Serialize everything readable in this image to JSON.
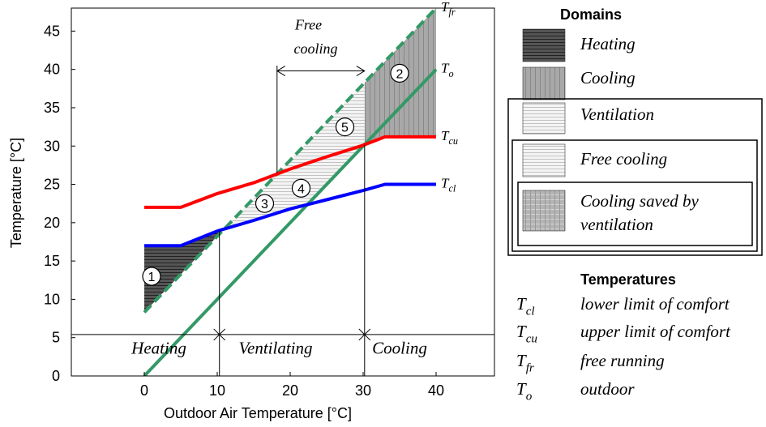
{
  "chart_data": {
    "type": "line",
    "xlabel": "Outdoor Air Temperature [°C]",
    "ylabel": "Temperature [°C]",
    "xlim": [
      -10,
      48
    ],
    "ylim": [
      0,
      48
    ],
    "xticks": [
      0,
      10,
      20,
      30,
      40
    ],
    "yticks": [
      0,
      5,
      10,
      15,
      20,
      25,
      30,
      35,
      40,
      45
    ],
    "grid": false,
    "colors": {
      "Tcu": "#ff0000",
      "Tcl": "#0000ff",
      "To": "#339966",
      "Tfr": "#339966",
      "heating": "#555555",
      "cooling": "#aaaaaa",
      "ventilation": "#cccccc"
    },
    "series": [
      {
        "key": "Tcu",
        "label_main": "T",
        "label_sub": "cu",
        "x": [
          0,
          5,
          10,
          15,
          20,
          25,
          30,
          33,
          40
        ],
        "y": [
          22,
          22,
          23.8,
          25.2,
          27,
          28.6,
          30.1,
          31.2,
          31.2
        ]
      },
      {
        "key": "Tcl",
        "label_main": "T",
        "label_sub": "cl",
        "x": [
          0,
          5,
          10,
          15,
          20,
          25,
          30,
          33,
          40
        ],
        "y": [
          17,
          17,
          18.9,
          20.3,
          21.8,
          23,
          24.2,
          25,
          25
        ]
      },
      {
        "key": "Tfr",
        "label_main": "T",
        "label_sub": "fr",
        "dashed": true,
        "x": [
          0,
          40
        ],
        "y": [
          8.3,
          48
        ]
      },
      {
        "key": "To",
        "label_main": "T",
        "label_sub": "o",
        "x": [
          0,
          40
        ],
        "y": [
          0,
          40
        ]
      }
    ],
    "regions": [
      {
        "id": "1",
        "label": "1",
        "at": [
          1,
          13
        ]
      },
      {
        "id": "2",
        "label": "2",
        "at": [
          35,
          39.5
        ]
      },
      {
        "id": "3",
        "label": "3",
        "at": [
          16.5,
          22.5
        ]
      },
      {
        "id": "4",
        "label": "4",
        "at": [
          21.5,
          24.5
        ]
      },
      {
        "id": "5",
        "label": "5",
        "at": [
          27.5,
          32.5
        ]
      }
    ],
    "modes": [
      {
        "label": "Heating",
        "x": 2
      },
      {
        "label": "Ventilating",
        "x": 18
      },
      {
        "label": "Cooling",
        "x": 35
      }
    ],
    "free_cooling_label": [
      "Free",
      "cooling"
    ],
    "mode_line_y": 5.4,
    "mode_boundaries": [
      10.3,
      30.2
    ],
    "free_cooling_range": [
      18.2,
      30.2
    ]
  },
  "legend": {
    "domains_title": "Domains",
    "domains": [
      {
        "label": "Heating",
        "pattern": "heating"
      },
      {
        "label": "Cooling",
        "pattern": "cooling"
      },
      {
        "label": "Ventilation",
        "pattern": "ventilation"
      },
      {
        "label": "Free cooling",
        "pattern": "ventilation"
      },
      {
        "label": "Cooling saved by",
        "label2": "ventilation",
        "pattern": "saved"
      }
    ],
    "temps_title": "Temperatures",
    "temps": [
      {
        "sym": "T",
        "sub": "cl",
        "desc": "lower limit of comfort"
      },
      {
        "sym": "T",
        "sub": "cu",
        "desc": "upper limit of comfort"
      },
      {
        "sym": "T",
        "sub": "fr",
        "desc": "free running"
      },
      {
        "sym": "T",
        "sub": "o",
        "desc": "outdoor"
      }
    ]
  }
}
